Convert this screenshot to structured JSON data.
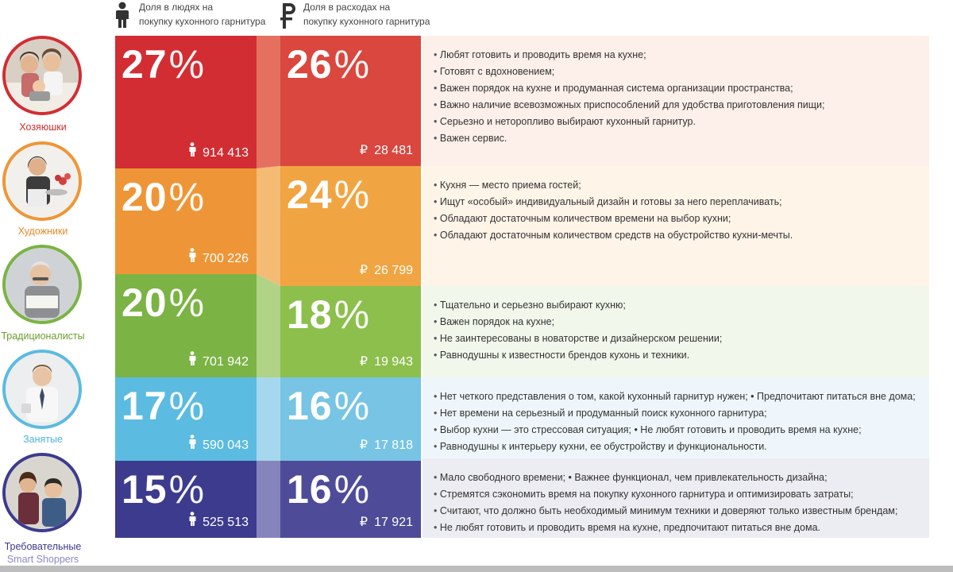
{
  "header": {
    "people_label_1": "Доля в людях на",
    "people_label_2": "покупку кухонного гарнитура",
    "spend_label_1": "Доля в расходах на",
    "spend_label_2": "покупку кухонного гарнитура",
    "icons": [
      "person-icon",
      "ruble-icon"
    ]
  },
  "segments": [
    {
      "name": "Хозяюшки",
      "name_color": "#d32f2f",
      "people_share": "27",
      "people_count": "914 413",
      "spend_share": "26",
      "spend_amount": "28 481",
      "left_color": "#d22d33",
      "right_color": "#d9473f",
      "connector_color": "#e57060",
      "desc_bg": "#fdefe9",
      "bullets": [
        "Любят готовить и проводить время на кухне;",
        "Готовят с вдохновением;",
        "Важен порядок на кухне и продуманная система организации пространства;",
        "Важно наличие всевозможных приспособлений для удобства приготовления пищи;",
        "Серьезно и неторопливо выбирают кухонный гарнитур.",
        "Важен сервис."
      ]
    },
    {
      "name": "Художники",
      "name_color": "#e8892a",
      "people_share": "20",
      "people_count": "700 226",
      "spend_share": "24",
      "spend_amount": "26 799",
      "left_color": "#ee9637",
      "right_color": "#f0a542",
      "connector_color": "#f4bb75",
      "desc_bg": "#fef4e8",
      "bullets": [
        "Кухня — место приема гостей;",
        "Ищут «особый» индивидуальный дизайн и готовы за него переплачивать;",
        "Обладают достаточным количеством времени на выбор кухни;",
        "Обладают достаточным количеством средств на обустройство кухни-мечты."
      ]
    },
    {
      "name": "Традиционалисты",
      "name_color": "#6a9e2e",
      "people_share": "20",
      "people_count": "701 942",
      "spend_share": "18",
      "spend_amount": "19 943",
      "left_color": "#7bb344",
      "right_color": "#8cbf4c",
      "connector_color": "#b0d385",
      "desc_bg": "#f2f7ec",
      "bullets": [
        "Тщательно и серьезно выбирают кухню;",
        "Важен порядок на кухне;",
        "Не заинтересованы в новаторстве и дизайнерском решении;",
        "Равнодушны к известности брендов кухонь и техники."
      ]
    },
    {
      "name": "Занятые",
      "name_color": "#4fb2d8",
      "people_share": "17",
      "people_count": "590 043",
      "spend_share": "16",
      "spend_amount": "17 818",
      "left_color": "#5bbbe0",
      "right_color": "#77c4e4",
      "connector_color": "#a5d8ee",
      "desc_bg": "#eef6fb",
      "bullets": [
        "Нет четкого представления о том, какой кухонный гарнитур нужен; • Предпочитают питаться вне дома;",
        "Нет времени на серьезный и продуманный поиск кухонного гарнитура;",
        "Выбор кухни — это стрессовая ситуация;   •  Не любят готовить и проводить время на кухне;",
        "Равнодушны к интерьеру кухни, ее обустройству и функциональности."
      ]
    },
    {
      "name": "Требовательные",
      "name_sub": "Smart Shoppers",
      "name_color": "#3d3a8c",
      "name_sub_color": "#8a89c2",
      "people_share": "15",
      "people_count": "525 513",
      "spend_share": "16",
      "spend_amount": "17 921",
      "left_color": "#3d3b8e",
      "right_color": "#4e4c98",
      "connector_color": "#8684bd",
      "desc_bg": "#ececf3",
      "bullets": [
        "Мало свободного времени;  •  Важнее функционал, чем привлекательность дизайна;",
        "Стремятся сэкономить время на покупку кухонного гарнитура и оптимизировать затраты;",
        "Считают, что должно быть необходимый минимум техники и доверяют только известным брендам;",
        "Не любят готовить и проводить время на кухне, предпочитают питаться вне дома."
      ]
    }
  ]
}
